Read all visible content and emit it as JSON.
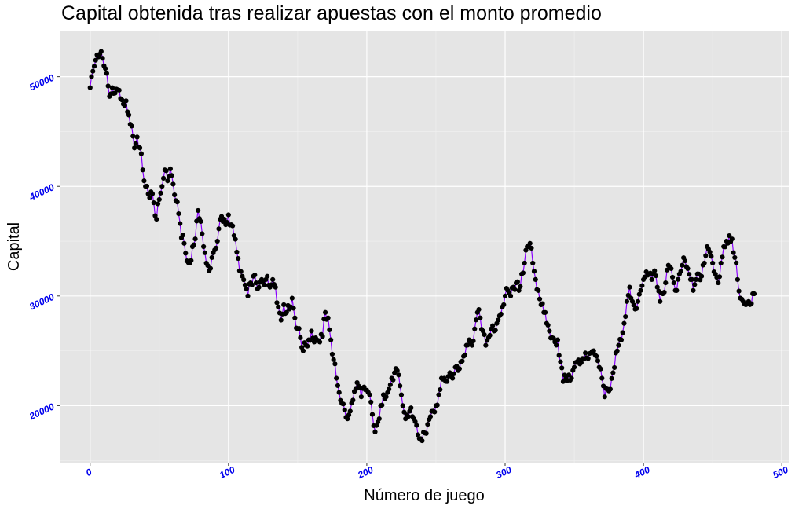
{
  "chart_data": {
    "type": "line",
    "title": "Capital obtenida tras realizar apuestas con el monto promedio",
    "xlabel": "Número de juego",
    "ylabel": "Capital",
    "xlim": [
      -22,
      505
    ],
    "ylim": [
      14800,
      54200
    ],
    "x_ticks": [
      0,
      100,
      200,
      300,
      400,
      500
    ],
    "y_ticks": [
      20000,
      30000,
      40000,
      50000
    ],
    "x_tick_labels": [
      "0",
      "100",
      "200",
      "300",
      "400",
      "500"
    ],
    "y_tick_labels": [
      "20000",
      "30000",
      "40000",
      "50000"
    ],
    "grid": true,
    "series": [
      {
        "line_color": "#8b00ff",
        "point_color": "#000000",
        "anchors": [
          [
            0,
            49000
          ],
          [
            2,
            50500
          ],
          [
            4,
            51500
          ],
          [
            6,
            51800
          ],
          [
            8,
            52300
          ],
          [
            10,
            51000
          ],
          [
            12,
            50300
          ],
          [
            14,
            48200
          ],
          [
            16,
            49000
          ],
          [
            18,
            48500
          ],
          [
            20,
            48800
          ],
          [
            22,
            48000
          ],
          [
            24,
            47500
          ],
          [
            26,
            47800
          ],
          [
            28,
            46500
          ],
          [
            30,
            45500
          ],
          [
            32,
            43500
          ],
          [
            34,
            44500
          ],
          [
            36,
            43500
          ],
          [
            38,
            41500
          ],
          [
            40,
            40000
          ],
          [
            42,
            39300
          ],
          [
            44,
            39500
          ],
          [
            46,
            38500
          ],
          [
            48,
            37000
          ],
          [
            50,
            38800
          ],
          [
            52,
            40000
          ],
          [
            54,
            41500
          ],
          [
            56,
            40500
          ],
          [
            58,
            41600
          ],
          [
            60,
            40200
          ],
          [
            62,
            38700
          ],
          [
            64,
            37500
          ],
          [
            66,
            35300
          ],
          [
            68,
            34800
          ],
          [
            70,
            33200
          ],
          [
            72,
            33000
          ],
          [
            74,
            34500
          ],
          [
            76,
            35200
          ],
          [
            78,
            37800
          ],
          [
            80,
            36800
          ],
          [
            82,
            34500
          ],
          [
            84,
            33000
          ],
          [
            86,
            32300
          ],
          [
            88,
            33500
          ],
          [
            90,
            34200
          ],
          [
            92,
            35000
          ],
          [
            94,
            37000
          ],
          [
            96,
            36800
          ],
          [
            98,
            36500
          ],
          [
            100,
            37400
          ],
          [
            102,
            36500
          ],
          [
            104,
            35500
          ],
          [
            106,
            34000
          ],
          [
            108,
            32300
          ],
          [
            110,
            31800
          ],
          [
            112,
            31000
          ],
          [
            114,
            30000
          ],
          [
            116,
            31200
          ],
          [
            118,
            31800
          ],
          [
            120,
            31200
          ],
          [
            122,
            30800
          ],
          [
            124,
            31500
          ],
          [
            126,
            31000
          ],
          [
            128,
            31800
          ],
          [
            130,
            30800
          ],
          [
            132,
            31500
          ],
          [
            134,
            30800
          ],
          [
            136,
            29000
          ],
          [
            138,
            27800
          ],
          [
            140,
            29200
          ],
          [
            142,
            28500
          ],
          [
            144,
            28800
          ],
          [
            146,
            29800
          ],
          [
            148,
            28000
          ],
          [
            150,
            27000
          ],
          [
            152,
            26200
          ],
          [
            154,
            25000
          ],
          [
            156,
            25500
          ],
          [
            158,
            26000
          ],
          [
            160,
            26800
          ],
          [
            162,
            25800
          ],
          [
            164,
            26000
          ],
          [
            166,
            25800
          ],
          [
            168,
            26300
          ],
          [
            170,
            28500
          ],
          [
            172,
            28000
          ],
          [
            174,
            26000
          ],
          [
            176,
            24200
          ],
          [
            178,
            22500
          ],
          [
            180,
            21200
          ],
          [
            182,
            20200
          ],
          [
            184,
            19600
          ],
          [
            186,
            18800
          ],
          [
            188,
            19500
          ],
          [
            190,
            20500
          ],
          [
            192,
            21500
          ],
          [
            194,
            21800
          ],
          [
            196,
            20800
          ],
          [
            198,
            21700
          ],
          [
            200,
            21400
          ],
          [
            202,
            21000
          ],
          [
            204,
            19200
          ],
          [
            206,
            17600
          ],
          [
            208,
            18500
          ],
          [
            210,
            20000
          ],
          [
            212,
            21000
          ],
          [
            214,
            20800
          ],
          [
            216,
            21500
          ],
          [
            218,
            22500
          ],
          [
            220,
            23000
          ],
          [
            222,
            23200
          ],
          [
            224,
            21800
          ],
          [
            226,
            20000
          ],
          [
            228,
            18800
          ],
          [
            230,
            19000
          ],
          [
            232,
            19800
          ],
          [
            234,
            18800
          ],
          [
            236,
            18200
          ],
          [
            238,
            17000
          ],
          [
            240,
            16800
          ],
          [
            242,
            17500
          ],
          [
            244,
            18300
          ],
          [
            246,
            19000
          ],
          [
            248,
            19500
          ],
          [
            250,
            20000
          ],
          [
            252,
            21000
          ],
          [
            254,
            22500
          ],
          [
            256,
            22500
          ],
          [
            258,
            22200
          ],
          [
            260,
            23000
          ],
          [
            262,
            22500
          ],
          [
            264,
            23500
          ],
          [
            266,
            23200
          ],
          [
            268,
            24000
          ],
          [
            270,
            24500
          ],
          [
            272,
            25500
          ],
          [
            274,
            26000
          ],
          [
            276,
            25500
          ],
          [
            278,
            27000
          ],
          [
            280,
            28500
          ],
          [
            282,
            28000
          ],
          [
            284,
            26800
          ],
          [
            286,
            25500
          ],
          [
            288,
            26200
          ],
          [
            290,
            27000
          ],
          [
            292,
            26800
          ],
          [
            294,
            27500
          ],
          [
            296,
            28200
          ],
          [
            298,
            29000
          ],
          [
            300,
            30000
          ],
          [
            302,
            30500
          ],
          [
            304,
            30000
          ],
          [
            306,
            30800
          ],
          [
            308,
            31200
          ],
          [
            310,
            30500
          ],
          [
            312,
            32000
          ],
          [
            314,
            33000
          ],
          [
            316,
            34500
          ],
          [
            318,
            34800
          ],
          [
            320,
            33000
          ],
          [
            322,
            31500
          ],
          [
            324,
            30500
          ],
          [
            326,
            29200
          ],
          [
            328,
            28500
          ],
          [
            330,
            27500
          ],
          [
            332,
            26800
          ],
          [
            334,
            26200
          ],
          [
            336,
            25800
          ],
          [
            338,
            26000
          ],
          [
            340,
            24000
          ],
          [
            342,
            22200
          ],
          [
            344,
            22500
          ],
          [
            346,
            22800
          ],
          [
            348,
            22500
          ],
          [
            350,
            23500
          ],
          [
            352,
            24000
          ],
          [
            354,
            23800
          ],
          [
            356,
            24300
          ],
          [
            358,
            24800
          ],
          [
            360,
            24300
          ],
          [
            362,
            24800
          ],
          [
            364,
            25000
          ],
          [
            366,
            24500
          ],
          [
            368,
            23500
          ],
          [
            370,
            22500
          ],
          [
            372,
            20800
          ],
          [
            374,
            21500
          ],
          [
            376,
            21500
          ],
          [
            378,
            23000
          ],
          [
            380,
            24800
          ],
          [
            382,
            25500
          ],
          [
            384,
            26000
          ],
          [
            386,
            27500
          ],
          [
            388,
            29500
          ],
          [
            390,
            30800
          ],
          [
            392,
            29500
          ],
          [
            394,
            28800
          ],
          [
            396,
            29500
          ],
          [
            398,
            30500
          ],
          [
            400,
            31500
          ],
          [
            402,
            32200
          ],
          [
            404,
            32000
          ],
          [
            406,
            31500
          ],
          [
            408,
            32300
          ],
          [
            410,
            30800
          ],
          [
            412,
            29500
          ],
          [
            414,
            30200
          ],
          [
            416,
            31200
          ],
          [
            418,
            32800
          ],
          [
            420,
            32500
          ],
          [
            422,
            31200
          ],
          [
            424,
            30500
          ],
          [
            426,
            32000
          ],
          [
            428,
            32800
          ],
          [
            430,
            33200
          ],
          [
            432,
            32500
          ],
          [
            434,
            31500
          ],
          [
            436,
            30500
          ],
          [
            438,
            31500
          ],
          [
            440,
            32000
          ],
          [
            442,
            31800
          ],
          [
            444,
            33000
          ],
          [
            446,
            34500
          ],
          [
            448,
            34000
          ],
          [
            450,
            33000
          ],
          [
            452,
            32000
          ],
          [
            454,
            31200
          ],
          [
            456,
            33000
          ],
          [
            458,
            34500
          ],
          [
            460,
            35000
          ],
          [
            462,
            35500
          ],
          [
            464,
            35200
          ],
          [
            466,
            33500
          ],
          [
            468,
            31500
          ],
          [
            470,
            29800
          ],
          [
            472,
            29500
          ],
          [
            474,
            29200
          ],
          [
            476,
            29500
          ],
          [
            478,
            29300
          ],
          [
            480,
            30200
          ]
        ]
      }
    ]
  }
}
